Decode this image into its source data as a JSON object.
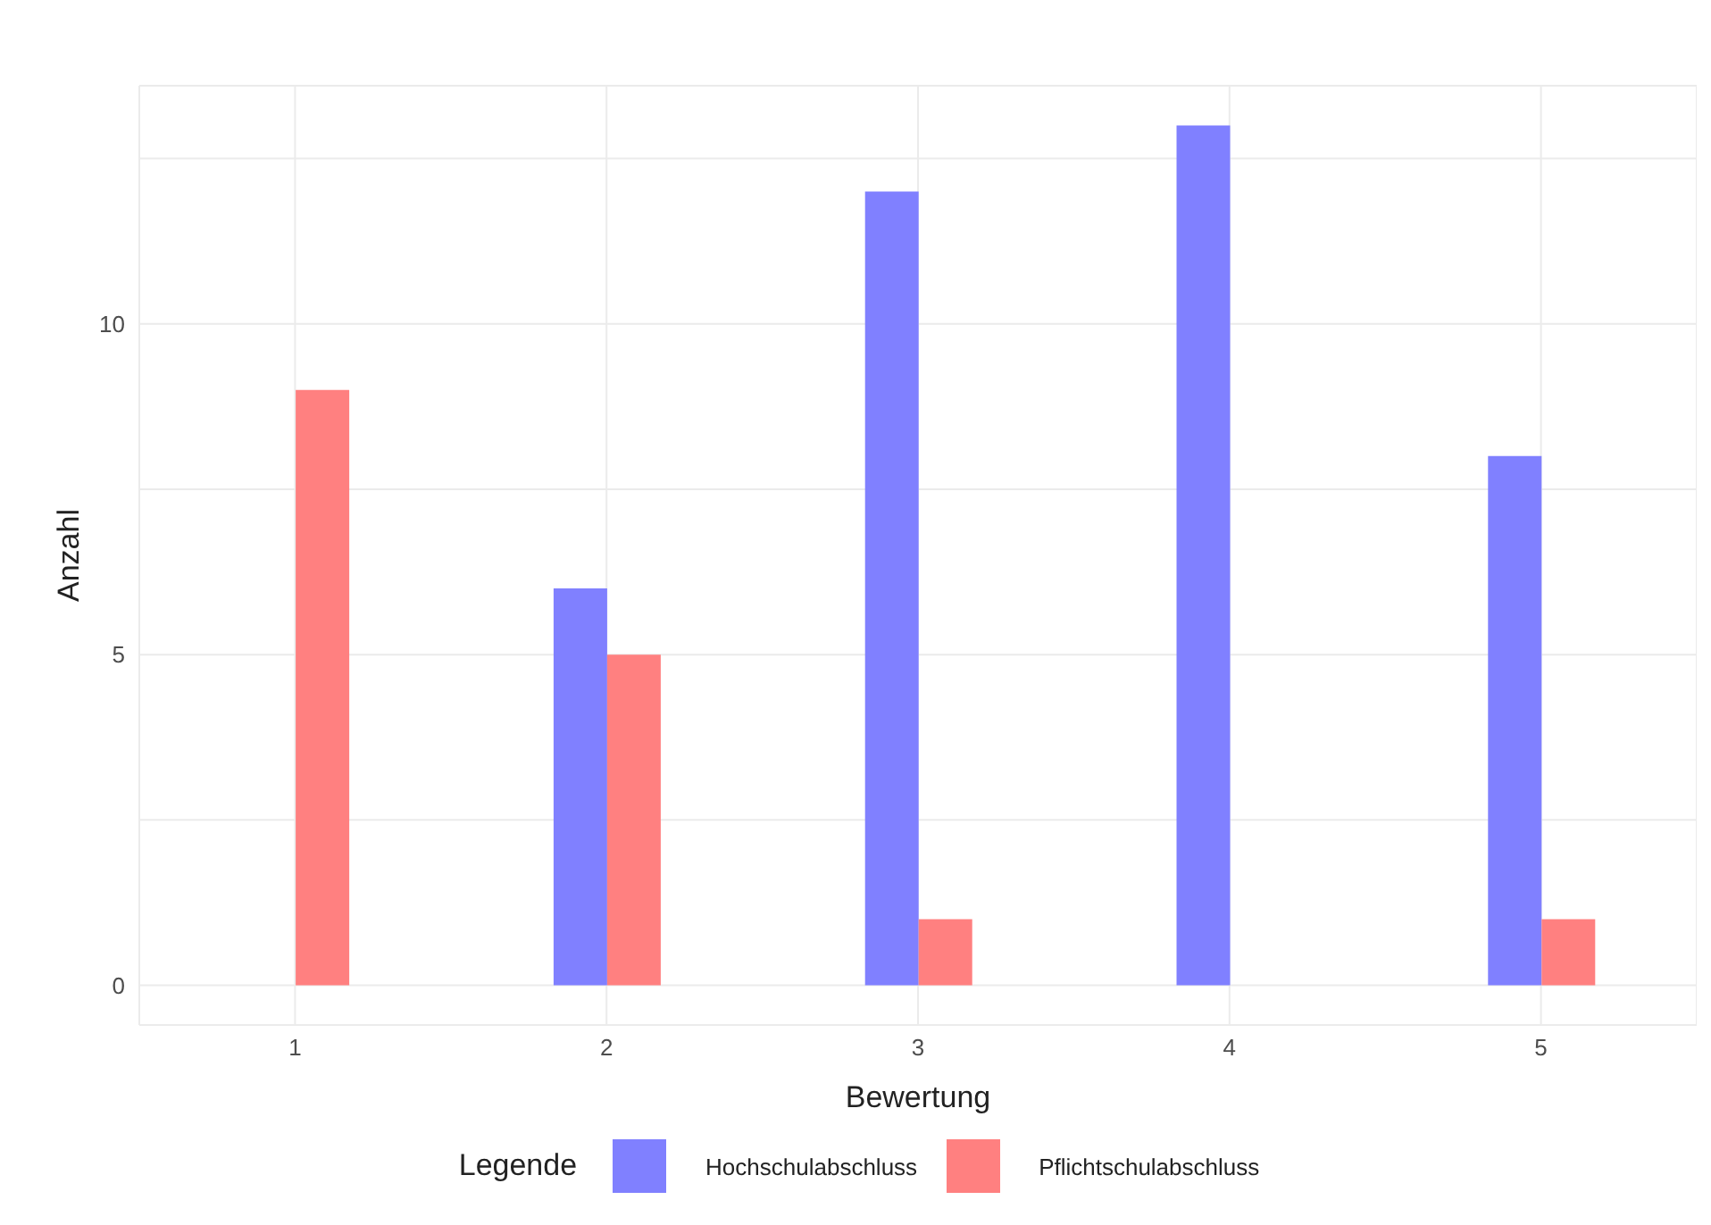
{
  "chart_data": {
    "type": "bar",
    "xlabel": "Bewertung",
    "ylabel": "Anzahl",
    "legend_title": "Legende",
    "categories": [
      "1",
      "2",
      "3",
      "4",
      "5"
    ],
    "series": [
      {
        "name": "Hochschulabschluss",
        "color": "#8080ff",
        "values": [
          null,
          6,
          12,
          13,
          8
        ]
      },
      {
        "name": "Pflichtschulabschluss",
        "color": "#ff8080",
        "values": [
          9,
          5,
          1,
          null,
          1
        ]
      }
    ],
    "ylim": [
      -0.6,
      13.6
    ],
    "yticks": [
      0,
      {
        "value": 2.5,
        "label": null
      },
      5,
      {
        "value": 7.5,
        "label": null
      },
      10,
      {
        "value": 12.5,
        "label": null
      }
    ],
    "grid": true,
    "legend": "bottom"
  }
}
